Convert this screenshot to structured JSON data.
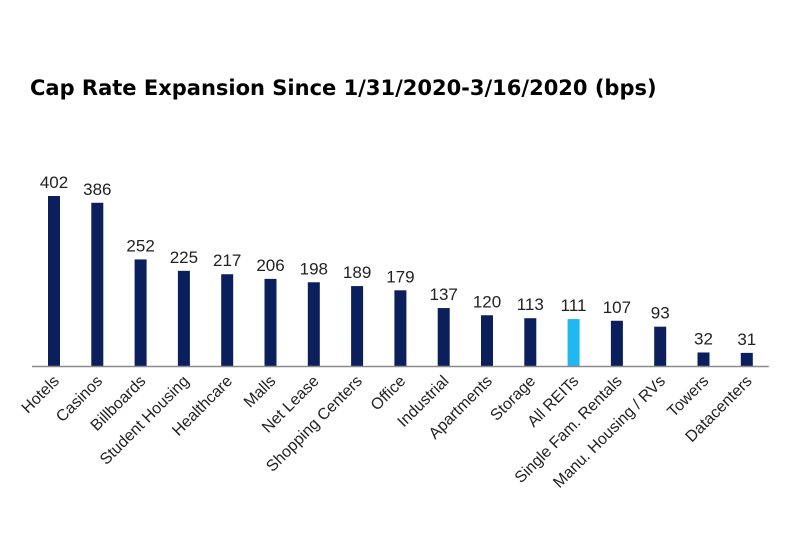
{
  "chart_data": {
    "type": "bar",
    "title": "Cap Rate Expansion Since 1/31/2020-3/16/2020 (bps)",
    "xlabel": "",
    "ylabel": "",
    "ylim": [
      0,
      420
    ],
    "grid": false,
    "legend": "none",
    "categories": [
      "Hotels",
      "Casinos",
      "Billboards",
      "Student Housing",
      "Healthcare",
      "Malls",
      "Net Lease",
      "Shopping Centers",
      "Office",
      "Industrial",
      "Apartments",
      "Storage",
      "All REITs",
      "Single Fam. Rentals",
      "Manu. Housing / RVs",
      "Towers",
      "Datacenters"
    ],
    "values": [
      402,
      386,
      252,
      225,
      217,
      206,
      198,
      189,
      179,
      137,
      120,
      113,
      111,
      107,
      93,
      32,
      31
    ],
    "data_labels": [
      "402",
      "386",
      "252",
      "225",
      "217",
      "206",
      "198",
      "189",
      "179",
      "137",
      "120",
      "113",
      "111",
      "107",
      "93",
      "32",
      "31"
    ],
    "bar_color": "#0b1f5c",
    "highlight_color": "#1fb8f0",
    "highlight_category": "All REITs",
    "axis_color": "#8a8a8a"
  }
}
